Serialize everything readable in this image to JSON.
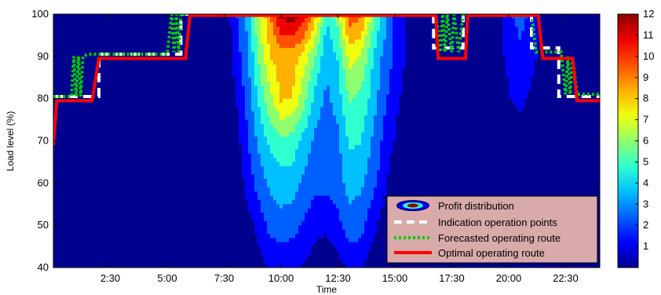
{
  "chart_data": {
    "type": "heatmap",
    "title": "",
    "xlabel": "Time",
    "ylabel": "Load level (%)",
    "xlim_hours": [
      0,
      24
    ],
    "ylim": [
      40,
      100
    ],
    "x_tick_labels": [
      {
        "hours": 2.5,
        "label": "2:30"
      },
      {
        "hours": 5.0,
        "label": "5:00"
      },
      {
        "hours": 7.5,
        "label": "7:30"
      },
      {
        "hours": 10.0,
        "label": "10:00"
      },
      {
        "hours": 12.5,
        "label": "12:30"
      },
      {
        "hours": 15.0,
        "label": "15:00"
      },
      {
        "hours": 17.5,
        "label": "17:30"
      },
      {
        "hours": 20.0,
        "label": "20:00"
      },
      {
        "hours": 22.5,
        "label": "22:30"
      }
    ],
    "y_ticks": [
      40,
      50,
      60,
      70,
      80,
      90,
      100
    ],
    "colorbar": {
      "range": [
        0,
        12
      ],
      "ticks": [
        1,
        2,
        3,
        4,
        5,
        6,
        7,
        8,
        9,
        10,
        11,
        12
      ]
    },
    "colormap": [
      "#00008f",
      "#0000ff",
      "#0060ff",
      "#00c0ff",
      "#30ffcf",
      "#90ff6f",
      "#f0ff0f",
      "#ffb000",
      "#ff5000",
      "#ef0000",
      "#8f0000"
    ],
    "background_color": "#00008f",
    "grid": false,
    "legend_position": "bottom-right",
    "profit_field": {
      "x_hours": [
        0,
        0.5,
        1.0,
        1.5,
        2.0,
        2.5,
        3.0,
        3.5,
        4.0,
        4.5,
        5.0,
        5.5,
        6.0,
        6.5,
        7.0,
        7.5,
        8.0,
        8.5,
        9.0,
        9.5,
        10.0,
        10.5,
        11.0,
        11.5,
        12.0,
        12.5,
        13.0,
        13.5,
        14.0,
        14.5,
        15.0,
        15.5,
        16.0,
        16.5,
        17.0,
        17.5,
        18.0,
        18.5,
        19.0,
        19.5,
        20.0,
        20.5,
        21.0,
        21.5,
        22.0,
        22.5,
        23.0,
        23.5,
        24.0
      ],
      "y_levels": [
        40,
        50,
        60,
        70,
        80,
        90,
        100
      ],
      "values": [
        [
          0,
          0,
          0,
          0,
          0,
          0,
          0,
          0,
          0,
          0,
          0,
          0,
          0,
          0,
          0,
          0,
          0,
          0,
          0.5,
          1.2,
          1.4,
          1.3,
          1.0,
          0.5,
          0,
          0.6,
          1.4,
          1.2,
          0.5,
          0,
          0,
          0,
          0,
          0,
          0,
          0,
          0,
          0,
          0,
          0,
          0,
          0,
          0,
          0,
          0,
          0,
          0,
          0,
          0
        ],
        [
          0,
          0,
          0,
          0,
          0,
          0,
          0,
          0,
          0,
          0,
          0,
          0,
          0,
          0,
          0,
          0,
          0,
          0.5,
          1.5,
          2.5,
          2.8,
          2.6,
          2.0,
          1.5,
          1.4,
          1.8,
          2.8,
          2.6,
          1.5,
          0.5,
          0,
          0,
          0,
          0,
          0,
          0,
          0,
          0,
          0,
          0,
          0,
          0,
          0,
          0,
          0,
          0,
          0,
          0,
          0
        ],
        [
          0,
          0,
          0,
          0,
          0,
          0,
          0,
          0,
          0,
          0,
          0,
          0,
          0,
          0,
          0,
          0,
          0,
          1.5,
          2.6,
          3.5,
          3.9,
          3.8,
          3.0,
          2.5,
          2.5,
          2.8,
          3.7,
          3.5,
          2.6,
          1.5,
          0,
          0,
          0,
          0,
          0,
          0,
          0,
          0,
          0,
          0,
          0,
          0,
          0,
          0,
          0,
          0,
          0,
          0,
          0
        ],
        [
          0,
          0,
          0,
          0,
          0,
          0,
          0,
          0,
          0,
          0,
          0,
          0,
          0,
          0,
          0,
          0,
          0.5,
          2.0,
          3.5,
          4.6,
          5.2,
          5.0,
          4.0,
          3.0,
          2.5,
          3.0,
          4.6,
          4.4,
          3.2,
          2.0,
          1.0,
          0,
          0,
          0,
          0,
          0,
          0,
          0,
          0,
          0,
          0,
          0,
          0,
          0,
          0,
          0,
          0,
          0,
          0
        ],
        [
          0,
          0,
          0,
          0,
          0,
          0,
          0,
          0,
          0,
          0,
          0,
          0,
          0,
          0,
          0,
          0,
          1.0,
          2.5,
          4.5,
          6.2,
          7.8,
          7.6,
          5.8,
          4.0,
          3.0,
          3.8,
          5.6,
          5.2,
          4.0,
          2.5,
          1.5,
          0.5,
          0,
          0,
          0,
          0,
          0,
          0,
          0,
          0,
          1.0,
          1.5,
          0.8,
          0,
          0,
          0,
          0,
          0,
          0
        ],
        [
          0,
          0,
          0,
          0,
          0,
          0,
          0,
          0,
          0,
          0,
          0,
          0,
          0,
          0,
          0,
          0,
          1.5,
          3.0,
          5.5,
          7.6,
          8.2,
          8.2,
          7.2,
          5.5,
          3.5,
          4.5,
          7.0,
          6.5,
          4.5,
          3.0,
          2.0,
          1.0,
          0,
          0,
          0,
          0,
          0,
          0,
          0,
          0.5,
          1.5,
          2.0,
          1.5,
          0.5,
          0,
          0,
          0,
          0,
          0
        ],
        [
          0,
          0,
          0,
          0,
          0,
          0,
          0,
          0,
          0,
          0,
          0,
          0,
          0,
          0,
          0,
          0,
          2.0,
          3.5,
          6.5,
          8.5,
          11.2,
          11.8,
          10.5,
          8.0,
          4.5,
          6.0,
          9.5,
          9.0,
          6.0,
          4.0,
          2.0,
          1.0,
          0,
          0,
          0,
          0,
          0,
          0,
          0,
          0.5,
          2.0,
          2.5,
          2.0,
          0.5,
          0,
          0,
          0,
          0,
          0
        ]
      ]
    },
    "series": [
      {
        "name": "Indication operation points",
        "color": "#ffffff",
        "style": "dashed",
        "points": [
          [
            0,
            80.5
          ],
          [
            2.0,
            80.5
          ],
          [
            2.0,
            90.5
          ],
          [
            5.6,
            90.5
          ],
          [
            5.6,
            100
          ],
          [
            16.7,
            100
          ],
          [
            16.7,
            92
          ],
          [
            18.0,
            92
          ],
          [
            18.0,
            100
          ],
          [
            21.0,
            100
          ],
          [
            21.0,
            92
          ],
          [
            22.2,
            92
          ],
          [
            22.2,
            80.5
          ],
          [
            24,
            80.5
          ]
        ]
      },
      {
        "name": "Forecasted operating route",
        "color": "#00cc00",
        "style": "dotted",
        "points": [
          [
            0,
            80.5
          ],
          [
            0.5,
            80.5
          ],
          [
            0.8,
            80.5
          ],
          [
            0.9,
            90
          ],
          [
            1.0,
            80.5
          ],
          [
            1.1,
            90
          ],
          [
            1.2,
            80.5
          ],
          [
            1.3,
            90
          ],
          [
            1.5,
            90.5
          ],
          [
            2.0,
            90.5
          ],
          [
            5.0,
            90.5
          ],
          [
            5.2,
            100
          ],
          [
            5.3,
            91
          ],
          [
            5.4,
            100
          ],
          [
            5.5,
            91
          ],
          [
            5.6,
            100
          ],
          [
            16.8,
            100
          ],
          [
            17.0,
            91
          ],
          [
            17.1,
            100
          ],
          [
            17.2,
            91
          ],
          [
            17.3,
            100
          ],
          [
            17.5,
            91
          ],
          [
            17.6,
            100
          ],
          [
            17.8,
            91
          ],
          [
            18.0,
            100
          ],
          [
            21.0,
            100
          ],
          [
            21.2,
            91
          ],
          [
            21.5,
            91
          ],
          [
            22.3,
            91
          ],
          [
            22.5,
            81
          ],
          [
            22.6,
            90
          ],
          [
            22.7,
            81
          ],
          [
            22.8,
            90
          ],
          [
            23.0,
            81
          ],
          [
            24,
            81
          ]
        ]
      },
      {
        "name": "Optimal operating route",
        "color": "#ff0000",
        "style": "solid",
        "points": [
          [
            0,
            69
          ],
          [
            0.15,
            79.5
          ],
          [
            1.7,
            79.5
          ],
          [
            2.0,
            89.5
          ],
          [
            5.8,
            89.5
          ],
          [
            6.0,
            99.7
          ],
          [
            16.8,
            99.7
          ],
          [
            16.9,
            89.5
          ],
          [
            18.1,
            89.5
          ],
          [
            18.2,
            99.7
          ],
          [
            21.3,
            99.7
          ],
          [
            21.5,
            89.5
          ],
          [
            22.8,
            89.5
          ],
          [
            23.0,
            79.5
          ],
          [
            24,
            79.5
          ]
        ]
      }
    ],
    "legend": [
      {
        "label": "Profit distribution",
        "marker": "profit-swatch"
      },
      {
        "label": "Indication operation points",
        "marker": "white-dashed"
      },
      {
        "label": "Forecasted operating route",
        "marker": "green-dotted"
      },
      {
        "label": "Optimal operating route",
        "marker": "red-solid"
      }
    ]
  }
}
